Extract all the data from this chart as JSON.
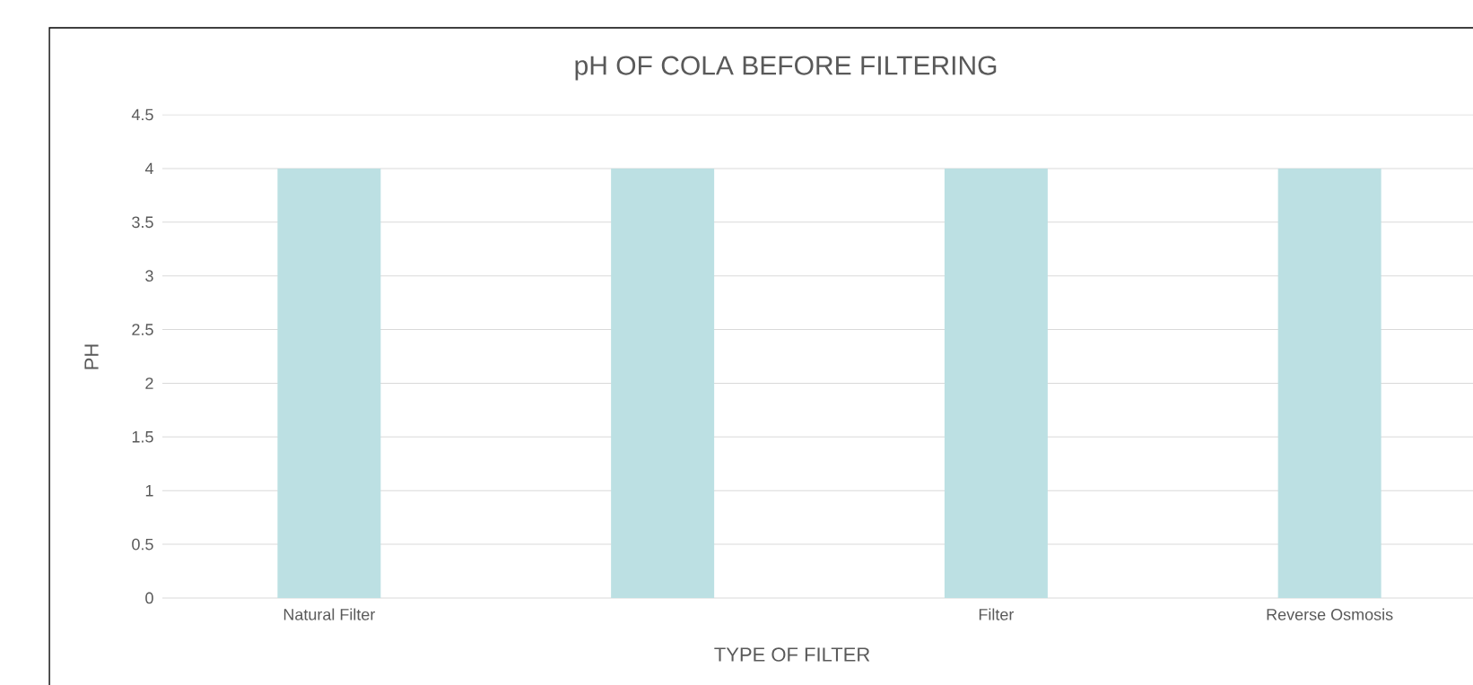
{
  "chart_data": {
    "type": "bar",
    "title": "pH OF COLA BEFORE FILTERING",
    "xlabel": "TYPE OF FILTER",
    "ylabel": "PH",
    "categories": [
      "Natural Filter",
      null,
      "Filter",
      "Reverse Osmosis"
    ],
    "values": [
      4,
      4,
      4,
      4
    ],
    "color": "#bce0e3",
    "ylim": [
      0,
      4.5
    ],
    "yticks": [
      0,
      0.5,
      1,
      1.5,
      2,
      2.5,
      3,
      3.5,
      4,
      4.5
    ],
    "grid": "y"
  }
}
